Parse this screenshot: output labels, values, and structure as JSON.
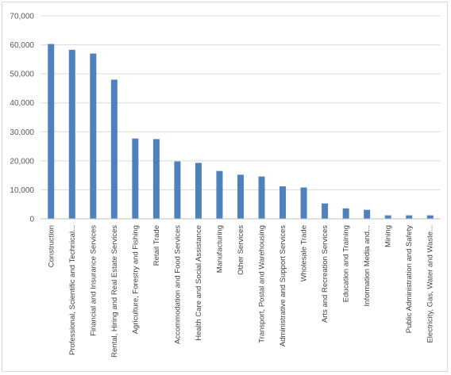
{
  "chart_data": {
    "type": "bar",
    "title": "",
    "xlabel": "",
    "ylabel": "",
    "ylim": [
      0,
      70000
    ],
    "yticks": [
      "0",
      "10,000",
      "20,000",
      "30,000",
      "40,000",
      "50,000",
      "60,000",
      "70,000"
    ],
    "grid": true,
    "legend": "none",
    "bar_color": "#4f81bd",
    "categories": [
      "Construction",
      "Professional, Scientific and Technical...",
      "Financial and Insurance Services",
      "Rental, Hiring and Real Estate Services",
      "Agriculture, Forestry and Fishing",
      "Retail Trade",
      "Accommodation and Food Services",
      "Health Care and Social Assistance",
      "Manufacturing",
      "Other Services",
      "Transport, Postal and Warehousing",
      "Administrative and Support Services",
      "Wholesale Trade",
      "Arts and Recreation Services",
      "Education and Training",
      "Information Media and...",
      "Mining",
      "Public Administration and Safety",
      "Electricity, Gas, Water and Waste..."
    ],
    "values": [
      60300,
      58300,
      57000,
      48000,
      27700,
      27500,
      19800,
      19300,
      16500,
      15200,
      14600,
      11200,
      10800,
      5300,
      3600,
      3100,
      1200,
      1200,
      1200
    ]
  }
}
